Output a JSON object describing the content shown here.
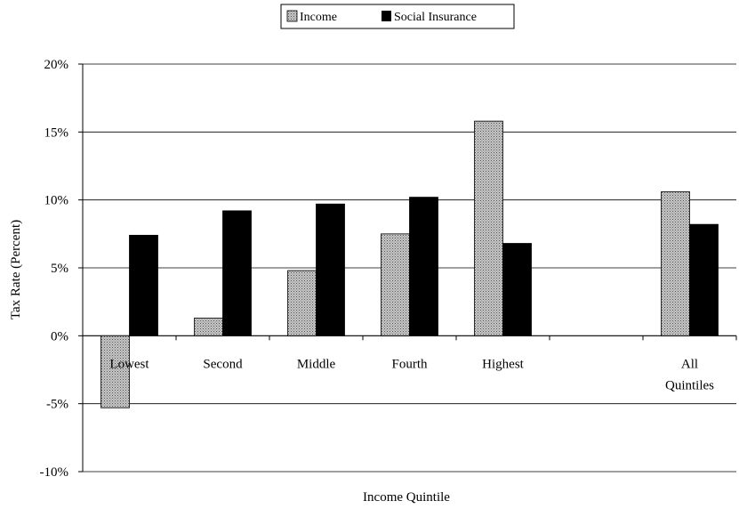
{
  "chart_data": {
    "type": "bar",
    "categories": [
      {
        "lines": [
          "Lowest"
        ]
      },
      {
        "lines": [
          "Second"
        ]
      },
      {
        "lines": [
          "Middle"
        ]
      },
      {
        "lines": [
          "Fourth"
        ]
      },
      {
        "lines": [
          "Highest"
        ]
      },
      {
        "lines": []
      },
      {
        "lines": [
          "All",
          "Quintiles"
        ]
      }
    ],
    "series": [
      {
        "name": "Income",
        "values": [
          -5.3,
          1.3,
          4.8,
          7.5,
          15.8,
          null,
          10.6
        ],
        "color": "#a9a9a9",
        "pattern": "dotted-gray"
      },
      {
        "name": "Social Insurance",
        "values": [
          7.4,
          9.2,
          9.7,
          10.2,
          6.8,
          null,
          8.2
        ],
        "color": "#000000"
      }
    ],
    "ylim": [
      -10,
      20
    ],
    "yticks": [
      -10,
      -5,
      0,
      5,
      10,
      15,
      20
    ],
    "ytick_labels": [
      "-10%",
      "-5%",
      "0%",
      "5%",
      "10%",
      "15%",
      "20%"
    ],
    "xlabel": "Income Quintile",
    "ylabel": "Tax Rate (Percent)",
    "grid": true,
    "legend": "top-center"
  }
}
